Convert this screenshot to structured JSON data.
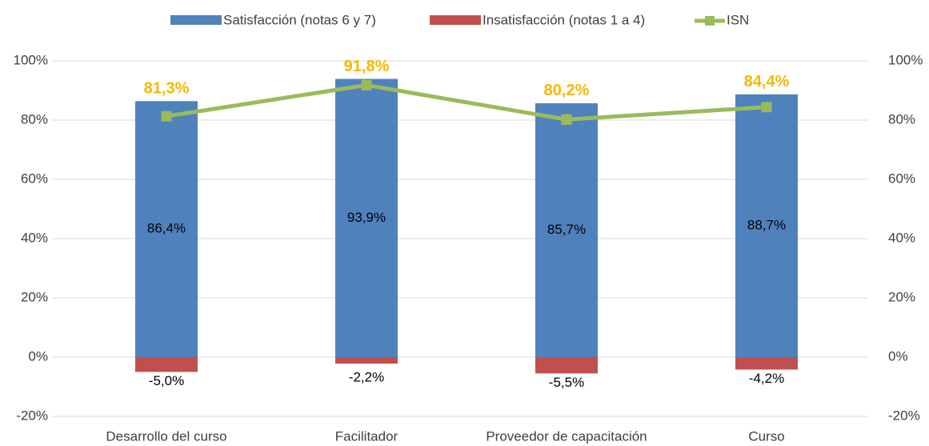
{
  "chart_data": {
    "type": "bar",
    "categories": [
      "Desarrollo del curso",
      "Facilitador",
      "Proveedor de capacitación",
      "Curso"
    ],
    "series": [
      {
        "name": "Satisfacción (notas 6 y 7)",
        "type": "bar",
        "color": "#4f81bd",
        "values": [
          86.4,
          93.9,
          85.7,
          88.7
        ],
        "value_labels": [
          "86,4%",
          "93,9%",
          "85,7%",
          "88,7%"
        ]
      },
      {
        "name": "Insatisfacción (notas 1 a 4)",
        "type": "bar",
        "color": "#c0504d",
        "values": [
          -5.0,
          -2.2,
          -5.5,
          -4.2
        ],
        "value_labels": [
          "-5,0%",
          "-2,2%",
          "-5,5%",
          "-4,2%"
        ]
      },
      {
        "name": "ISN",
        "type": "line",
        "axis": "y2",
        "color": "#9bbb59",
        "label_color": "#f5b800",
        "values": [
          81.3,
          91.8,
          80.2,
          84.4
        ],
        "value_labels": [
          "81,3%",
          "91,8%",
          "80,2%",
          "84,4%"
        ]
      }
    ],
    "ylim": [
      -20,
      100
    ],
    "yticks": [
      {
        "value": -20,
        "label": "-20%"
      },
      {
        "value": 0,
        "label": "0%"
      },
      {
        "value": 20,
        "label": "20%"
      },
      {
        "value": 40,
        "label": "40%"
      },
      {
        "value": 60,
        "label": "60%"
      },
      {
        "value": 80,
        "label": "80%"
      },
      {
        "value": 100,
        "label": "100%"
      }
    ],
    "y2lim": [
      -20,
      100
    ],
    "y2ticks": [
      {
        "value": -20,
        "label": "-20%"
      },
      {
        "value": 0,
        "label": "0%"
      },
      {
        "value": 20,
        "label": "20%"
      },
      {
        "value": 40,
        "label": "40%"
      },
      {
        "value": 60,
        "label": "60%"
      },
      {
        "value": 80,
        "label": "80%"
      },
      {
        "value": 100,
        "label": "100%"
      }
    ],
    "grid": true,
    "legend": "top"
  }
}
